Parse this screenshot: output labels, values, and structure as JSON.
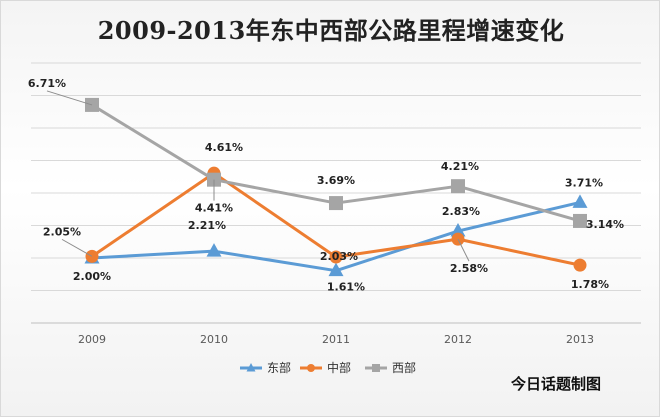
{
  "chart_data": {
    "type": "line",
    "title": "2009-2013年东中西部公路里程增速变化",
    "categories": [
      "2009",
      "2010",
      "2011",
      "2012",
      "2013"
    ],
    "ylim": [
      0,
      8
    ],
    "grid": true,
    "legend_position": "bottom",
    "series": [
      {
        "name": "东部",
        "values": [
          2.0,
          2.21,
          1.61,
          2.83,
          3.71
        ],
        "labels": [
          "2.00%",
          "2.21%",
          "1.61%",
          "2.83%",
          "3.71%"
        ],
        "color": "#5b9bd5",
        "marker": "triangle"
      },
      {
        "name": "中部",
        "values": [
          2.05,
          4.61,
          2.03,
          2.58,
          1.78
        ],
        "labels": [
          "2.05%",
          "4.61%",
          "2.03%",
          "2.58%",
          "1.78%"
        ],
        "color": "#ed7d31",
        "marker": "circle"
      },
      {
        "name": "西部",
        "values": [
          6.71,
          4.41,
          3.69,
          4.21,
          3.14
        ],
        "labels": [
          "6.71%",
          "4.41%",
          "3.69%",
          "4.21%",
          "3.14%"
        ],
        "color": "#a5a5a5",
        "marker": "square"
      }
    ]
  },
  "caption": "今日话题制图"
}
